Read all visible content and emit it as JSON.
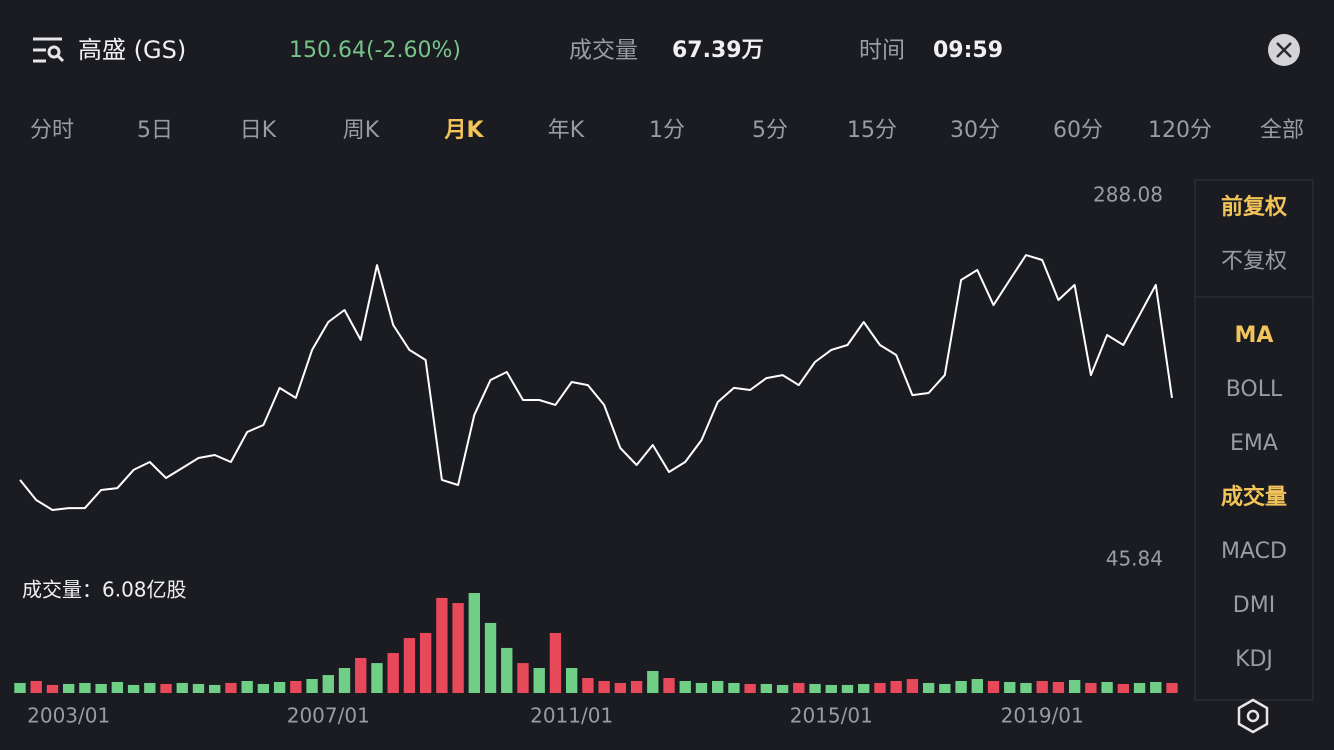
{
  "header": {
    "title": "高盛 (GS)",
    "price": "150.64(-2.60%)",
    "volume_label": "成交量",
    "volume": "67.39万",
    "time_label": "时间",
    "time": "09:59"
  },
  "tabs": [
    {
      "label": "分时",
      "active": false
    },
    {
      "label": "5日",
      "active": false
    },
    {
      "label": "日K",
      "active": false
    },
    {
      "label": "周K",
      "active": false
    },
    {
      "label": "月K",
      "active": true
    },
    {
      "label": "年K",
      "active": false
    },
    {
      "label": "1分",
      "active": false
    },
    {
      "label": "5分",
      "active": false
    },
    {
      "label": "15分",
      "active": false
    },
    {
      "label": "30分",
      "active": false
    },
    {
      "label": "60分",
      "active": false
    },
    {
      "label": "120分",
      "active": false
    },
    {
      "label": "全部",
      "active": false
    }
  ],
  "side_panel": {
    "groups": [
      [
        {
          "label": "前复权",
          "active": true
        },
        {
          "label": "不复权",
          "active": false
        }
      ],
      [
        {
          "label": "MA",
          "active": true
        },
        {
          "label": "BOLL",
          "active": false
        },
        {
          "label": "EMA",
          "active": false
        },
        {
          "label": "成交量",
          "active": true
        },
        {
          "label": "MACD",
          "active": false
        },
        {
          "label": "DMI",
          "active": false
        },
        {
          "label": "KDJ",
          "active": false
        }
      ]
    ]
  },
  "chart_data": {
    "type": "line",
    "color": "#ffffff",
    "categories": [
      null,
      null,
      null,
      "2003/01",
      null,
      null,
      null,
      null,
      null,
      null,
      null,
      null,
      null,
      null,
      null,
      null,
      null,
      null,
      null,
      "2007/01",
      null,
      null,
      null,
      null,
      null,
      null,
      null,
      null,
      null,
      null,
      null,
      null,
      null,
      null,
      "2011/01",
      null,
      null,
      null,
      null,
      null,
      null,
      null,
      null,
      null,
      null,
      null,
      null,
      null,
      null,
      null,
      "2015/01",
      null,
      null,
      null,
      null,
      null,
      null,
      null,
      null,
      null,
      null,
      null,
      null,
      "2019/01",
      null,
      null,
      null,
      null,
      null,
      null,
      null,
      null
    ],
    "values": [
      102.5,
      89.9,
      83.6,
      84.8,
      84.8,
      96.2,
      97.4,
      108.8,
      113.8,
      103.7,
      110.0,
      116.3,
      118.2,
      113.8,
      132.7,
      137.1,
      160.4,
      154.1,
      184.3,
      201.9,
      209.4,
      190.6,
      237.7,
      200.0,
      184.3,
      178.0,
      102.5,
      99.3,
      143.4,
      165.4,
      170.4,
      152.8,
      152.8,
      149.7,
      164.1,
      162.2,
      149.7,
      122.6,
      111.9,
      124.5,
      107.5,
      113.8,
      127.6,
      151.5,
      160.4,
      159.1,
      166.6,
      168.5,
      162.2,
      176.7,
      184.3,
      187.4,
      201.9,
      187.4,
      181.1,
      155.9,
      157.2,
      168.5,
      228.3,
      234.6,
      212.5,
      228.3,
      244.0,
      240.9,
      215.7,
      225.2,
      168.5,
      193.7,
      187.4,
      206.3,
      225.2,
      154.1
    ],
    "ylim": [
      45.84,
      288.08
    ],
    "yticks": [
      288.08,
      45.84
    ],
    "volume": {
      "label": "成交量：6.08亿股",
      "up_color": "#6fcf86",
      "down_color": "#e8495a",
      "values": [
        0.61,
        0.73,
        0.49,
        0.55,
        0.61,
        0.55,
        0.67,
        0.49,
        0.61,
        0.55,
        0.61,
        0.55,
        0.49,
        0.61,
        0.73,
        0.55,
        0.67,
        0.73,
        0.85,
        1.09,
        1.52,
        2.13,
        1.82,
        2.43,
        3.34,
        3.65,
        5.78,
        5.47,
        6.08,
        4.26,
        2.74,
        1.82,
        1.52,
        3.65,
        1.52,
        0.91,
        0.73,
        0.61,
        0.73,
        1.34,
        0.91,
        0.73,
        0.61,
        0.73,
        0.61,
        0.55,
        0.55,
        0.49,
        0.61,
        0.55,
        0.49,
        0.49,
        0.55,
        0.61,
        0.73,
        0.85,
        0.61,
        0.55,
        0.73,
        0.85,
        0.73,
        0.67,
        0.61,
        0.73,
        0.67,
        0.79,
        0.61,
        0.67,
        0.55,
        0.61,
        0.67,
        0.61
      ]
    }
  }
}
